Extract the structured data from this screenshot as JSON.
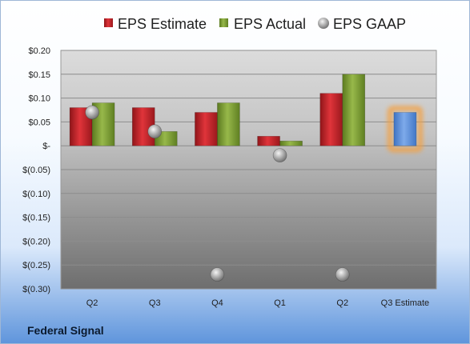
{
  "chart_data": {
    "type": "bar",
    "title": "",
    "xlabel": "",
    "ylabel": "",
    "ylim": [
      -0.3,
      0.2
    ],
    "y_ticks": [
      {
        "value": 0.2,
        "label": "$0.20"
      },
      {
        "value": 0.15,
        "label": "$0.15"
      },
      {
        "value": 0.1,
        "label": "$0.10"
      },
      {
        "value": 0.05,
        "label": "$0.05"
      },
      {
        "value": 0.0,
        "label": "$-"
      },
      {
        "value": -0.05,
        "label": "$(0.05)"
      },
      {
        "value": -0.1,
        "label": "$(0.10)"
      },
      {
        "value": -0.15,
        "label": "$(0.15)"
      },
      {
        "value": -0.2,
        "label": "$(0.20)"
      },
      {
        "value": -0.25,
        "label": "$(0.25)"
      },
      {
        "value": -0.3,
        "label": "$(0.30)"
      }
    ],
    "categories": [
      "Q2",
      "Q3",
      "Q4",
      "Q1",
      "Q2",
      "Q3 Estimate"
    ],
    "series": [
      {
        "name": "EPS Estimate",
        "kind": "bar",
        "color": "#c0262c",
        "values": [
          0.08,
          0.08,
          0.07,
          0.02,
          0.11,
          null
        ]
      },
      {
        "name": "EPS Actual",
        "kind": "bar",
        "color": "#7a9a32",
        "values": [
          0.09,
          0.03,
          0.09,
          0.01,
          0.15,
          null
        ]
      },
      {
        "name": "EPS GAAP",
        "kind": "marker",
        "color": "#a6a6a6",
        "values": [
          0.07,
          0.03,
          -0.27,
          -0.02,
          -0.27,
          null
        ]
      }
    ],
    "estimate_highlight": {
      "category": "Q3 Estimate",
      "value": 0.07,
      "color": "#5b8fd6",
      "glow": "#f5a040"
    },
    "legend_position": "top",
    "grid": true
  },
  "company": "Federal Signal"
}
